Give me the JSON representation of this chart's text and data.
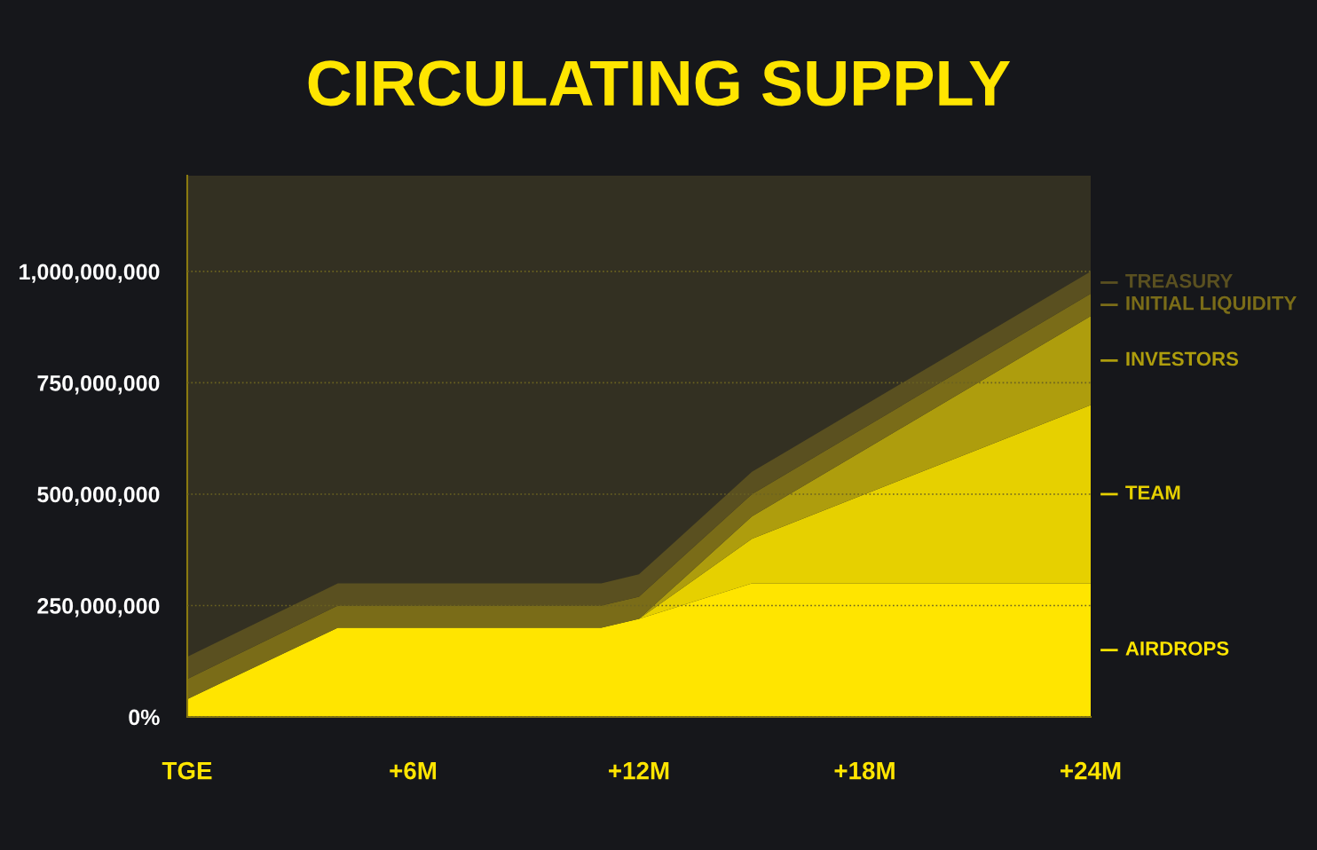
{
  "chart_data": {
    "type": "area",
    "title": "CIRCULATING SUPPLY",
    "stacked": true,
    "x": [
      0,
      4,
      11,
      12,
      15,
      24
    ],
    "series": [
      {
        "name": "AIRDROPS",
        "color": "#ffe500",
        "values": [
          40000000,
          200000000,
          200000000,
          220000000,
          300000000,
          300000000
        ]
      },
      {
        "name": "TEAM",
        "color": "#e6d000",
        "values": [
          0,
          0,
          0,
          0,
          100000000,
          400000000
        ]
      },
      {
        "name": "INVESTORS",
        "color": "#ae9d0d",
        "values": [
          0,
          0,
          0,
          0,
          50000000,
          200000000
        ]
      },
      {
        "name": "INITIAL LIQUIDITY",
        "color": "#7a6c18",
        "values": [
          45000000,
          50000000,
          50000000,
          50000000,
          50000000,
          50000000
        ]
      },
      {
        "name": "TREASURY",
        "color": "#5a5020",
        "values": [
          50000000,
          50000000,
          50000000,
          50000000,
          50000000,
          50000000
        ]
      }
    ],
    "xlim": [
      0,
      24
    ],
    "xticks": [
      {
        "value": 0,
        "label": "TGE"
      },
      {
        "value": 6,
        "label": "+6M"
      },
      {
        "value": 12,
        "label": "+12M"
      },
      {
        "value": 18,
        "label": "+18M"
      },
      {
        "value": 24,
        "label": "+24M"
      }
    ],
    "ylim": [
      0,
      1215000000
    ],
    "yticks": [
      {
        "value": 0,
        "label": "0%"
      },
      {
        "value": 250000000,
        "label": "250,000,000"
      },
      {
        "value": 500000000,
        "label": "500,000,000"
      },
      {
        "value": 750000000,
        "label": "750,000,000"
      },
      {
        "value": 1000000000,
        "label": "1,000,000,000"
      }
    ],
    "grid": "y",
    "legend": "right"
  }
}
